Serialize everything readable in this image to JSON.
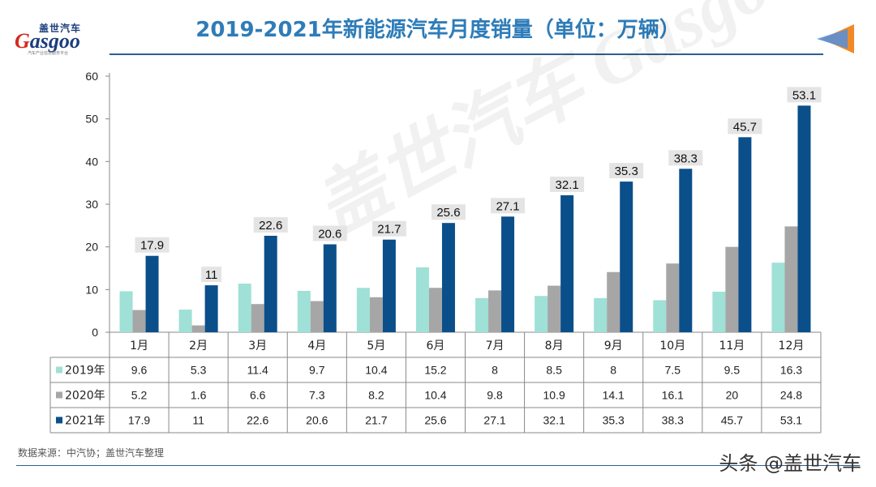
{
  "page": {
    "title": "2019-2021年新能源汽车月度销量（单位：万辆）",
    "logo_cn": "盖世汽车",
    "logo_en_g": "G",
    "logo_en_rest": "asgoo",
    "logo_sub": "汽车产业信息服务平台",
    "watermark": "盖世汽车 Gasgoo",
    "source": "数据来源：中汽协；盖世汽车整理",
    "credit": "头条 @盖世汽车"
  },
  "colors": {
    "s2019": "#9fe0d7",
    "s2020": "#a6a6a6",
    "s2021": "#0a4f8a",
    "title": "#2e7cb8"
  },
  "chart_data": {
    "type": "bar",
    "title": "2019-2021年新能源汽车月度销量（单位：万辆）",
    "categories": [
      "1月",
      "2月",
      "3月",
      "4月",
      "5月",
      "6月",
      "7月",
      "8月",
      "9月",
      "10月",
      "11月",
      "12月"
    ],
    "series": [
      {
        "name": "2019年",
        "values": [
          9.6,
          5.3,
          11.4,
          9.7,
          10.4,
          15.2,
          8,
          8.5,
          8,
          7.5,
          9.5,
          16.3
        ]
      },
      {
        "name": "2020年",
        "values": [
          5.2,
          1.6,
          6.6,
          7.3,
          8.2,
          10.4,
          9.8,
          10.9,
          14.1,
          16.1,
          20,
          24.8
        ]
      },
      {
        "name": "2021年",
        "values": [
          17.9,
          11,
          22.6,
          20.6,
          21.7,
          25.6,
          27.1,
          32.1,
          35.3,
          38.3,
          45.7,
          53.1
        ]
      }
    ],
    "data_labels_series": "2021年",
    "ylim": [
      0,
      60
    ],
    "yticks": [
      0,
      10,
      20,
      30,
      40,
      50,
      60
    ],
    "grid": false,
    "legend": "data-table"
  }
}
